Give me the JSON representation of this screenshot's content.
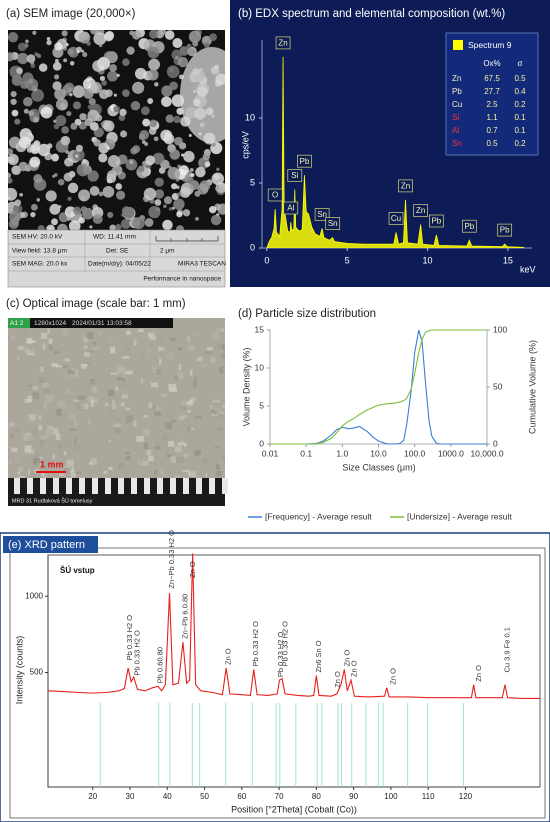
{
  "panel_a": {
    "title": "(a) SEM image (20,000×)",
    "info": [
      "SEM HV: 20.0 kV",
      "WD: 11.41 mm",
      "View field: 13.8 μm",
      "Det: SE",
      "2 μm",
      "SEM MAG: 20.0 kx",
      "Date(m/d/y): 04/05/22",
      "MIRA3 TESCAN",
      "Performance in nanospace"
    ]
  },
  "panel_c": {
    "title": "(c) Optical image (scale bar: 1 mm)",
    "header": [
      "A1 2",
      "1280x1024",
      "2024/01/31 13:03:58"
    ],
    "scale_bar": "1 mm",
    "footer": "MRD 31 Rudlaková ŠÚ tomelusy"
  },
  "chart_data": [
    {
      "type": "area",
      "title": "(b) EDX spectrum and elemental composition (wt.%)",
      "x": [
        0,
        0.15,
        0.3,
        0.45,
        0.52,
        0.6,
        0.8,
        0.95,
        1.01,
        1.08,
        1.3,
        1.45,
        1.49,
        1.55,
        1.68,
        1.74,
        1.8,
        2.0,
        2.2,
        2.34,
        2.45,
        2.6,
        2.8,
        3.0,
        3.3,
        3.44,
        3.55,
        3.9,
        4.1,
        4.2,
        5,
        6,
        7,
        7.9,
        8.04,
        8.2,
        8.5,
        8.63,
        8.75,
        9.4,
        9.57,
        9.7,
        10.4,
        10.55,
        10.7,
        12.45,
        12.6,
        12.75,
        14.65,
        14.8,
        14.95,
        16
      ],
      "series": [
        {
          "name": "Spectrum 9",
          "color": "#ffff00",
          "values": [
            0,
            0.5,
            0.8,
            1.5,
            3.0,
            1.2,
            0.9,
            3,
            14.7,
            3,
            1.3,
            1.2,
            2.0,
            1.3,
            1.5,
            4.5,
            1.6,
            1.3,
            1.4,
            5.6,
            2.8,
            2.6,
            1.6,
            1.1,
            0.9,
            1.5,
            0.8,
            0.6,
            0.8,
            0.5,
            0.35,
            0.3,
            0.3,
            0.3,
            1.2,
            0.3,
            0.4,
            3.7,
            0.4,
            0.3,
            1.8,
            0.3,
            0.2,
            1.0,
            0.2,
            0.15,
            0.6,
            0.15,
            0.1,
            0.3,
            0.1,
            0.05
          ]
        }
      ],
      "xlim": [
        -0.3,
        16.5
      ],
      "ylim": [
        0,
        16
      ],
      "xticks": [
        0,
        5,
        10,
        15
      ],
      "yticks": [
        0,
        5,
        10
      ],
      "xlabel": "keV",
      "ylabel": "cps/eV",
      "legend": "upper right",
      "peak_labels": [
        {
          "text": "O",
          "x": 0.52,
          "y": 3.0
        },
        {
          "text": "Zn",
          "x": 1.01,
          "y": 14.7
        },
        {
          "text": "Al",
          "x": 1.49,
          "y": 2.0
        },
        {
          "text": "Si",
          "x": 1.74,
          "y": 4.5
        },
        {
          "text": "Pb",
          "x": 2.34,
          "y": 5.6
        },
        {
          "text": "Sn",
          "x": 3.44,
          "y": 1.5
        },
        {
          "text": "Sn",
          "x": 4.1,
          "y": 0.8
        },
        {
          "text": "Cu",
          "x": 8.04,
          "y": 1.2
        },
        {
          "text": "Zn",
          "x": 8.63,
          "y": 3.7
        },
        {
          "text": "Zn",
          "x": 9.57,
          "y": 1.8
        },
        {
          "text": "Pb",
          "x": 10.55,
          "y": 1.0
        },
        {
          "text": "Pb",
          "x": 12.6,
          "y": 0.6
        },
        {
          "text": "Pb",
          "x": 14.8,
          "y": 0.3
        }
      ],
      "composition": {
        "columns": [
          "Ox%",
          "σ"
        ],
        "rows": [
          {
            "element": "Zn",
            "color": "#f2f2c0",
            "values": [
              67.5,
              0.5
            ]
          },
          {
            "element": "Pb",
            "color": "#f2f2c0",
            "values": [
              27.7,
              0.4
            ]
          },
          {
            "element": "Cu",
            "color": "#f2f2c0",
            "values": [
              2.5,
              0.2
            ]
          },
          {
            "element": "Si",
            "color": "#ff3030",
            "values": [
              1.1,
              0.1
            ]
          },
          {
            "element": "Al",
            "color": "#ff3030",
            "values": [
              0.7,
              0.1
            ]
          },
          {
            "element": "Sn",
            "color": "#ff3030",
            "values": [
              0.5,
              0.2
            ]
          }
        ]
      }
    },
    {
      "type": "line",
      "title": "(d) Particle size distribution",
      "xscale": "log",
      "x": [
        0.01,
        0.1,
        0.2,
        0.3,
        0.5,
        0.7,
        1,
        1.5,
        2,
        3,
        5,
        7,
        10,
        15,
        20,
        30,
        40,
        50,
        60,
        80,
        100,
        130,
        160,
        200,
        250,
        300,
        400,
        500,
        1000,
        10000
      ],
      "series": [
        {
          "name": "[Frequency] - Average result",
          "color": "#3a7fd5",
          "values": [
            0,
            0,
            0.1,
            0.4,
            1.2,
            1.9,
            2.2,
            2.0,
            2.1,
            2.3,
            1.6,
            0.9,
            0.4,
            0.1,
            0,
            0,
            0.1,
            0.5,
            2.5,
            7,
            12,
            15,
            13.5,
            8,
            3,
            1,
            0.1,
            0,
            0,
            0
          ]
        },
        {
          "name": "[Undersize] - Average result",
          "color": "#7cbf3a",
          "axis": "y2",
          "values": [
            0,
            0,
            0.3,
            1.5,
            5,
            10,
            16,
            20,
            22,
            26,
            30,
            32,
            34,
            35,
            35.5,
            36,
            37,
            38,
            40,
            48,
            62,
            80,
            92,
            98,
            99.5,
            100,
            100,
            100,
            100,
            100
          ]
        }
      ],
      "xlim": [
        0.01,
        10000
      ],
      "ylim": [
        0,
        15
      ],
      "y2lim": [
        0,
        100
      ],
      "xticks": [
        0.01,
        0.1,
        {
          "value": 1,
          "label": "1.0"
        },
        {
          "value": 10,
          "label": "10.0"
        },
        {
          "value": 100,
          "label": "100.0"
        },
        {
          "value": 1000,
          "label": "1000.0"
        },
        {
          "value": 10000,
          "label": "10,000.0"
        }
      ],
      "yticks": [
        0,
        5,
        10,
        15
      ],
      "y2ticks": [
        0,
        50,
        100
      ],
      "xlabel": "Size Classes (μm)",
      "ylabel": "Volume Density (%)",
      "y2label": "Cumulative Volume (%)",
      "legend": "bottom"
    },
    {
      "type": "line",
      "title": "(e) XRD pattern",
      "subtitle": "ŠÚ vstup",
      "color": "#e8201c",
      "x": [
        8,
        12,
        16,
        20,
        24,
        27,
        28.5,
        29.5,
        30.3,
        31,
        32,
        34,
        36,
        37.5,
        38.5,
        39.5,
        40.6,
        41.5,
        43,
        44.2,
        45.2,
        46,
        46.8,
        47.6,
        49,
        52,
        54.8,
        55.8,
        56.8,
        60,
        62.3,
        63.2,
        64.1,
        67,
        69.5,
        70.1,
        70.8,
        71.6,
        75,
        78,
        79.3,
        80,
        80.7,
        84,
        85.5,
        86.6,
        87.5,
        88.3,
        89.3,
        90.2,
        94,
        98.3,
        98.9,
        99.5,
        105,
        110,
        115,
        121.6,
        122.2,
        122.8,
        127,
        129.9,
        130.6,
        131.3,
        135,
        140
      ],
      "values": [
        380,
        375,
        370,
        365,
        370,
        380,
        395,
        530,
        440,
        470,
        390,
        380,
        400,
        410,
        380,
        420,
        1020,
        420,
        430,
        700,
        430,
        450,
        1280,
        420,
        380,
        370,
        355,
        530,
        360,
        355,
        350,
        520,
        355,
        350,
        360,
        450,
        460,
        360,
        350,
        345,
        350,
        480,
        350,
        345,
        360,
        420,
        520,
        380,
        450,
        345,
        340,
        345,
        400,
        340,
        340,
        335,
        335,
        335,
        420,
        335,
        335,
        335,
        420,
        335,
        330,
        330
      ],
      "xlim": [
        8,
        140
      ],
      "ylim": [
        -250,
        1270
      ],
      "xticks": [
        20,
        30,
        40,
        50,
        60,
        70,
        80,
        90,
        100,
        110,
        120
      ],
      "yticks": [
        500,
        1000
      ],
      "xlabel": "Position [°2Theta] (Cobalt (Co))",
      "ylabel": "Intensity (counts)",
      "reference_positions": [
        22,
        37.7,
        40.7,
        46.7,
        48.7,
        55.7,
        62.8,
        69.2,
        70.2,
        74.5,
        80.2,
        81.5,
        85.8,
        86.7,
        89.5,
        93.3,
        96.6,
        97.9,
        104.5,
        109.8,
        119.5
      ],
      "reference_color": "#8fd9cf",
      "peak_labels": [
        {
          "text": "Pb 0.33 H2 O",
          "x": 29.4,
          "y": 580
        },
        {
          "text": "Pb 0.33 H2 O",
          "x": 31.4,
          "y": 480
        },
        {
          "text": "Pb 0.60.80",
          "x": 37.5,
          "y": 430
        },
        {
          "text": "Zn~Pb 0.33 H2 O",
          "x": 40.6,
          "y": 1050
        },
        {
          "text": "Zn~Pb 6.0.80",
          "x": 44.2,
          "y": 720
        },
        {
          "text": "Zn O",
          "x": 46.2,
          "y": 1120
        },
        {
          "text": "Zn O",
          "x": 55.8,
          "y": 550
        },
        {
          "text": "Pb 0.33 H2 O",
          "x": 63.2,
          "y": 540
        },
        {
          "text": "Pb 0.33 H2 O",
          "x": 69.8,
          "y": 470
        },
        {
          "text": "Pb 0.33 H2 O",
          "x": 71.0,
          "y": 540
        },
        {
          "text": "Zn6 Sn O",
          "x": 80.0,
          "y": 500
        },
        {
          "text": "Zn O",
          "x": 85.1,
          "y": 400
        },
        {
          "text": "Zn O",
          "x": 87.7,
          "y": 540
        },
        {
          "text": "Zn O",
          "x": 89.6,
          "y": 470
        },
        {
          "text": "Zn O",
          "x": 100.0,
          "y": 420
        },
        {
          "text": "Zn O",
          "x": 123.0,
          "y": 440
        },
        {
          "text": "Cu 3.9 Fe 0.1",
          "x": 130.6,
          "y": 500
        }
      ]
    }
  ]
}
